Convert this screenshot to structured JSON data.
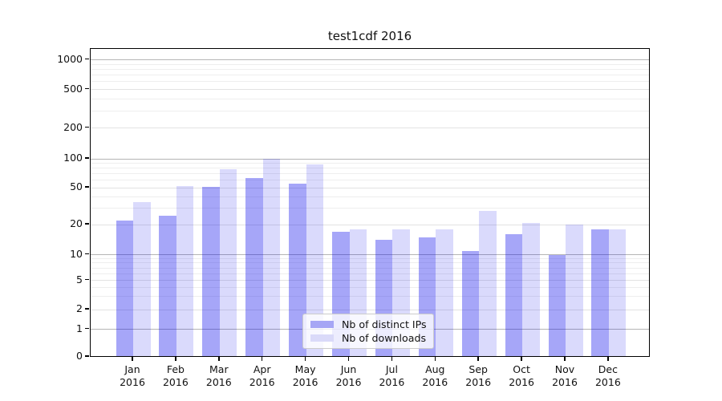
{
  "window": {
    "title": "test1cdf 2016"
  },
  "chart_data": {
    "type": "bar",
    "title": "test1cdf 2016",
    "xlabel": "",
    "ylabel": "",
    "year": "2016",
    "categories": [
      "Jan",
      "Feb",
      "Mar",
      "Apr",
      "May",
      "Jun",
      "Jul",
      "Aug",
      "Sep",
      "Oct",
      "Nov",
      "Dec"
    ],
    "series": [
      {
        "name": "Nb of distinct IPs",
        "color": "rgba(0,0,235,0.35)",
        "swatch_hex": "#a6a6f5",
        "values": [
          22,
          25,
          51,
          63,
          55,
          17,
          14,
          15,
          11,
          16,
          10,
          18
        ]
      },
      {
        "name": "Nb of downloads",
        "color": "rgba(0,0,235,0.145)",
        "swatch_hex": "#dadaf9",
        "values": [
          35,
          52,
          78,
          100,
          88,
          18,
          18,
          18,
          28,
          21,
          20,
          18
        ]
      }
    ],
    "y_axis": {
      "scale": "symlog-like",
      "tick_values": [
        0,
        1,
        2,
        5,
        10,
        20,
        50,
        100,
        200,
        500,
        1000
      ],
      "tick_labels": [
        "0",
        "1",
        "2",
        "5",
        "10",
        "20",
        "50",
        "100",
        "200",
        "500",
        "1000"
      ],
      "ylim": [
        0,
        1300
      ],
      "major_grid_values": [
        1,
        10,
        100,
        1000
      ],
      "sub_grid_values": [
        2,
        5,
        20,
        50,
        200,
        500
      ],
      "minor_grid_values": [
        3,
        4,
        6,
        7,
        8,
        9,
        30,
        40,
        60,
        70,
        80,
        90,
        300,
        400,
        600,
        700,
        800,
        900
      ]
    },
    "grid": true,
    "legend_position": "lower-center-inside",
    "colors": {
      "spine": "#000000",
      "major_grid": "#b5b5b5",
      "minor_grid": "#eeeeee"
    }
  }
}
